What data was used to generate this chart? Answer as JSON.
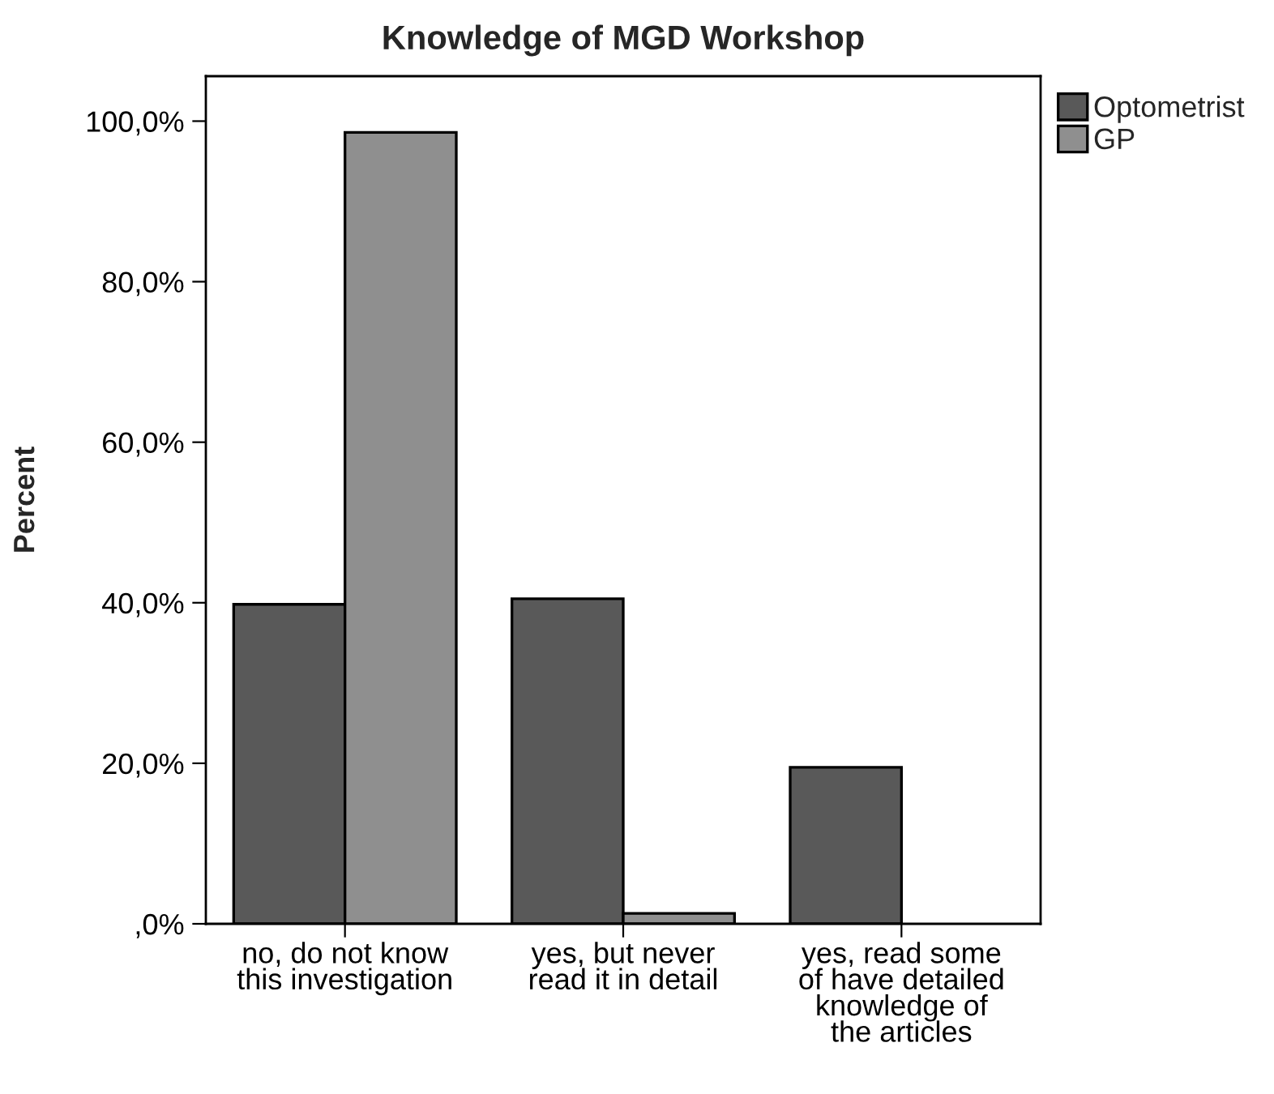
{
  "chart_data": {
    "type": "bar",
    "title": "Knowledge of MGD Workshop",
    "ylabel": "Percent",
    "categories": [
      "no, do not know\nthis investigation",
      "yes, but never\nread it in detail",
      "yes, read some\nof have detailed\nknowledge of\nthe articles"
    ],
    "series": [
      {
        "name": "Optometrist",
        "color": "#595959",
        "values": [
          39.8,
          40.5,
          19.5
        ]
      },
      {
        "name": "GP",
        "color": "#8f8f8f",
        "values": [
          98.6,
          1.3,
          null
        ]
      }
    ],
    "ylim": [
      0,
      105.6
    ],
    "yticks": [
      {
        "value": 0,
        "label": ",0%"
      },
      {
        "value": 20,
        "label": "20,0%"
      },
      {
        "value": 40,
        "label": "40,0%"
      },
      {
        "value": 60,
        "label": "60,0%"
      },
      {
        "value": 80,
        "label": "80,0%"
      },
      {
        "value": 100,
        "label": "100,0%"
      }
    ],
    "grid": false,
    "legend": "top right"
  }
}
